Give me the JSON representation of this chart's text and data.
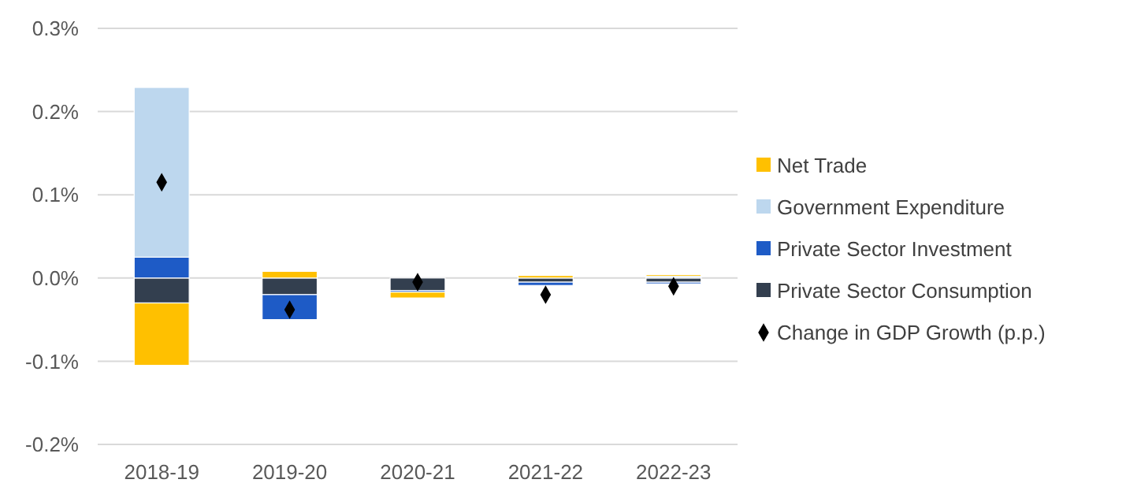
{
  "chart_data": {
    "type": "bar",
    "stacked": true,
    "categories": [
      "2018-19",
      "2019-20",
      "2020-21",
      "2021-22",
      "2022-23"
    ],
    "series": [
      {
        "name": "Private Sector Consumption",
        "color": "#333f4f",
        "values": [
          -0.03,
          -0.02,
          -0.015,
          -0.005,
          -0.005
        ]
      },
      {
        "name": "Private Sector Investment",
        "color": "#1e5bc6",
        "values": [
          0.025,
          -0.03,
          -0.002,
          -0.004,
          -0.002
        ]
      },
      {
        "name": "Government Expenditure",
        "color": "#bdd7ee",
        "values": [
          0.204,
          0,
          0,
          0,
          0.002
        ]
      },
      {
        "name": "Net Trade",
        "color": "#ffc000",
        "values": [
          -0.075,
          0.008,
          -0.007,
          0.003,
          0.002
        ]
      },
      {
        "name": "Change in GDP Growth (p.p.)",
        "type": "scatter",
        "marker": "diamond",
        "color": "#000000",
        "x": [
          "2018-19",
          "2019-20",
          "2020-21",
          "2021-22",
          "2022-23"
        ],
        "values": [
          0.115,
          -0.038,
          -0.005,
          -0.02,
          -0.01
        ]
      }
    ],
    "ylim": [
      -0.2,
      0.3
    ],
    "yticks": [
      {
        "value": -0.2,
        "label": "-0.2%"
      },
      {
        "value": -0.1,
        "label": "-0.1%"
      },
      {
        "value": 0,
        "label": "0.0%"
      },
      {
        "value": 0.1,
        "label": "0.1%"
      },
      {
        "value": 0.2,
        "label": "0.2%"
      },
      {
        "value": 0.3,
        "label": "0.3%"
      }
    ],
    "grid": "y",
    "legend": "right"
  }
}
